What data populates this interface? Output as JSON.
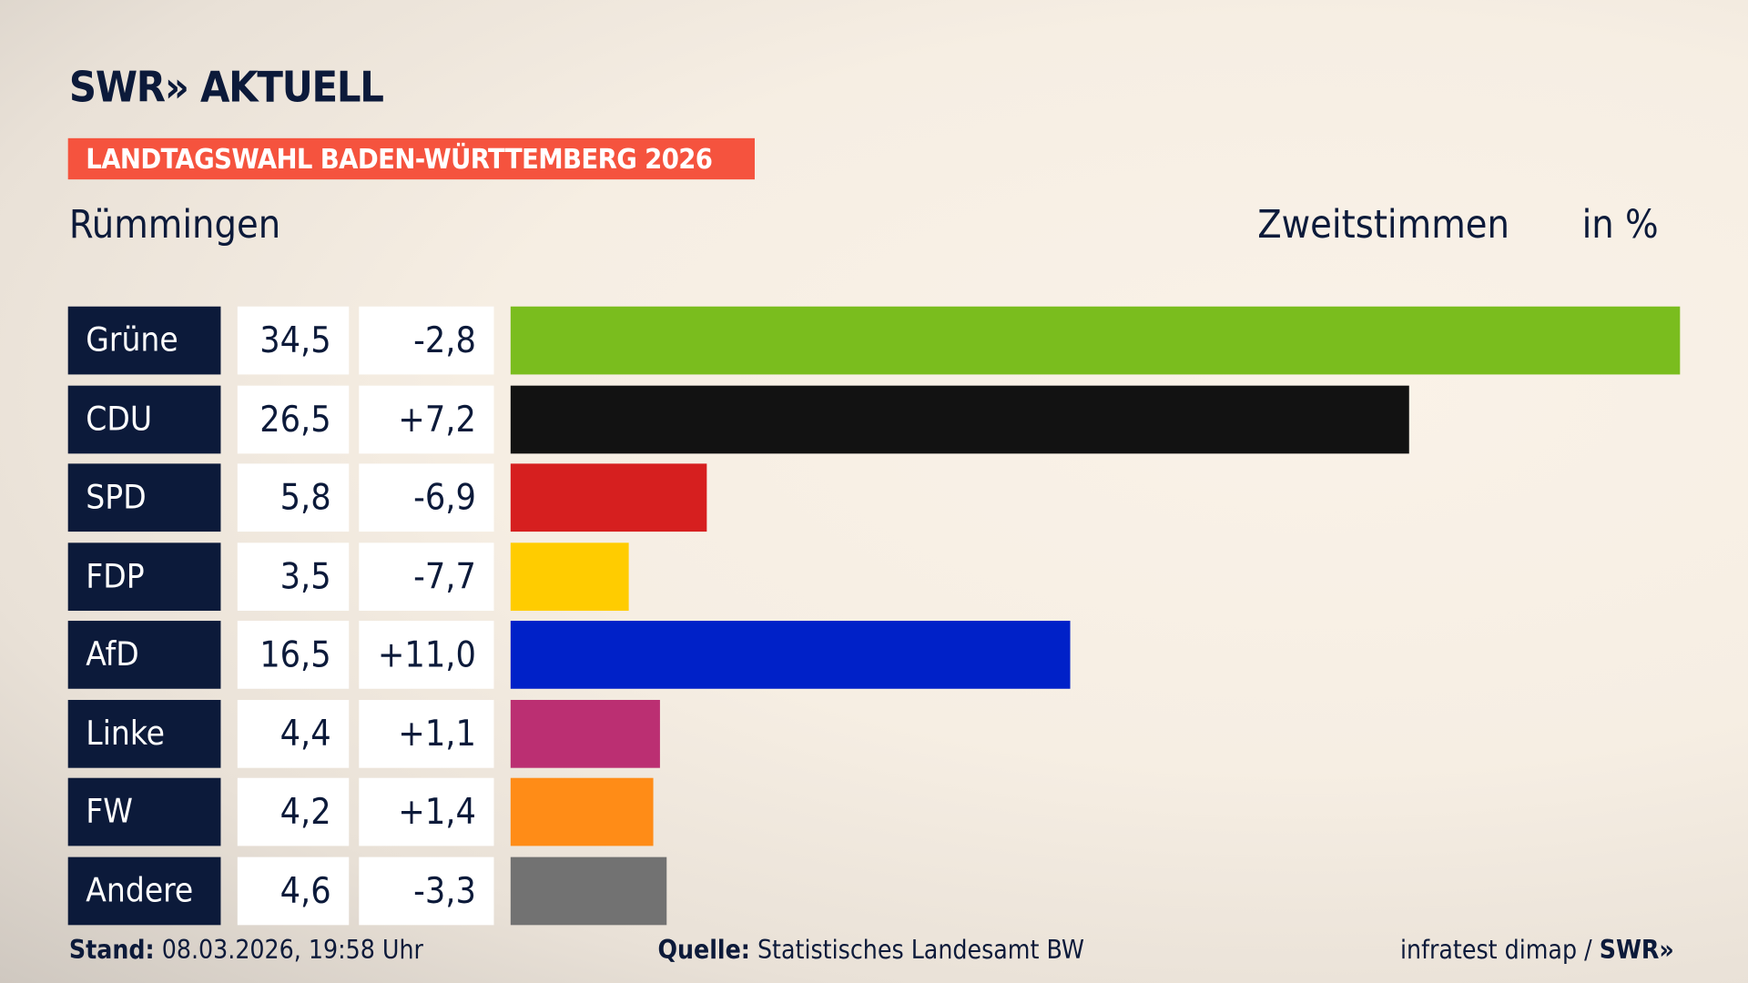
{
  "header": {
    "logo": "SWR» AKTUELL",
    "badge": "LANDTAGSWAHL BADEN-WÜRTTEMBERG 2026",
    "place": "Rümmingen",
    "vote_type": "Zweitstimmen",
    "unit": "in %"
  },
  "chart_data": {
    "type": "bar",
    "orientation": "horizontal",
    "categories": [
      "Grüne",
      "CDU",
      "SPD",
      "FDP",
      "AfD",
      "Linke",
      "FW",
      "Andere"
    ],
    "values": [
      34.5,
      26.5,
      5.8,
      3.5,
      16.5,
      4.4,
      4.2,
      4.6
    ],
    "value_labels": [
      "34,5",
      "26,5",
      "5,8",
      "3,5",
      "16,5",
      "4,4",
      "4,2",
      "4,6"
    ],
    "diff_labels": [
      "-2,8",
      "+7,2",
      "-6,9",
      "-7,7",
      "+11,0",
      "+1,1",
      "+1,4",
      "-3,3"
    ],
    "colors": [
      "#7abd1e",
      "#121212",
      "#d61f1f",
      "#ffcc00",
      "#0021c8",
      "#bb2f72",
      "#ff8c17",
      "#727272"
    ],
    "unit": "in %",
    "xlim": [
      0,
      34.5
    ],
    "grid": false,
    "legend": "none"
  },
  "footer": {
    "stand_label": "Stand:",
    "stand_value": "08.03.2026, 19:58 Uhr",
    "source_label": "Quelle:",
    "source_value": "Statistisches Landesamt BW",
    "credit": "infratest dimap /",
    "credit_logo": "SWR»"
  }
}
